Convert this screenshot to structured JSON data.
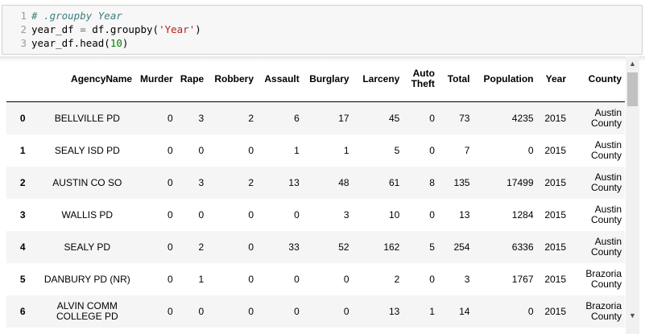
{
  "code": {
    "lines": [
      {
        "num": "1",
        "parts": [
          {
            "t": "# .groupby Year",
            "c": "comment"
          }
        ]
      },
      {
        "num": "2",
        "parts": [
          {
            "t": "year_df ",
            "c": ""
          },
          {
            "t": "=",
            "c": "op"
          },
          {
            "t": " df.groupby(",
            "c": ""
          },
          {
            "t": "'Year'",
            "c": "str"
          },
          {
            "t": ")",
            "c": ""
          }
        ]
      },
      {
        "num": "3",
        "parts": [
          {
            "t": "year_df.head(",
            "c": ""
          },
          {
            "t": "10",
            "c": "num"
          },
          {
            "t": ")",
            "c": ""
          }
        ]
      }
    ]
  },
  "table": {
    "columns": [
      "",
      "AgencyName",
      "Murder",
      "Rape",
      "Robbery",
      "Assault",
      "Burglary",
      "Larceny",
      "Auto Theft",
      "Total",
      "Population",
      "Year",
      "County"
    ],
    "rows": [
      {
        "index": "0",
        "cells": [
          "BELLVILLE PD",
          "0",
          "3",
          "2",
          "6",
          "17",
          "45",
          "0",
          "73",
          "4235",
          "2015",
          "Austin County"
        ]
      },
      {
        "index": "1",
        "cells": [
          "SEALY ISD PD",
          "0",
          "0",
          "0",
          "1",
          "1",
          "5",
          "0",
          "7",
          "0",
          "2015",
          "Austin County"
        ]
      },
      {
        "index": "2",
        "cells": [
          "AUSTIN CO SO",
          "0",
          "3",
          "2",
          "13",
          "48",
          "61",
          "8",
          "135",
          "17499",
          "2015",
          "Austin County"
        ]
      },
      {
        "index": "3",
        "cells": [
          "WALLIS PD",
          "0",
          "0",
          "0",
          "0",
          "3",
          "10",
          "0",
          "13",
          "1284",
          "2015",
          "Austin County"
        ]
      },
      {
        "index": "4",
        "cells": [
          "SEALY PD",
          "0",
          "2",
          "0",
          "33",
          "52",
          "162",
          "5",
          "254",
          "6336",
          "2015",
          "Austin County"
        ]
      },
      {
        "index": "5",
        "cells": [
          "DANBURY PD (NR)",
          "0",
          "1",
          "0",
          "0",
          "0",
          "2",
          "0",
          "3",
          "1767",
          "2015",
          "Brazoria County"
        ]
      },
      {
        "index": "6",
        "cells": [
          "ALVIN COMM COLLEGE PD",
          "0",
          "0",
          "0",
          "0",
          "0",
          "13",
          "1",
          "14",
          "0",
          "2015",
          "Brazoria County"
        ]
      }
    ]
  },
  "scrollbar": {
    "up_icon": "triangle-up-icon",
    "down_icon": "triangle-down-icon"
  }
}
